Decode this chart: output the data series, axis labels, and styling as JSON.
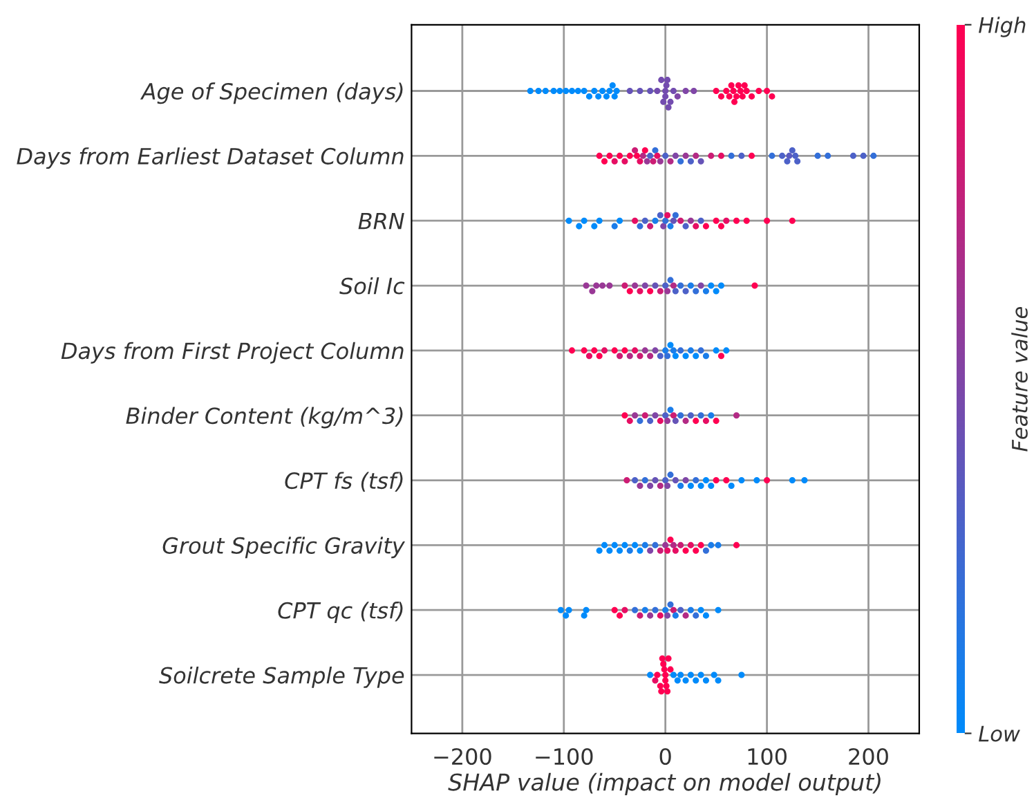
{
  "chart_data": {
    "type": "scatter",
    "orientation": "horizontal",
    "xlabel": "SHAP value (impact on model output)",
    "clabel": "Feature value",
    "categories": [
      "Age of Specimen (days)",
      "Days from Earliest Dataset Column",
      "BRN",
      "Soil Ic",
      "Days from First Project Column",
      "Binder Content (kg/m^3)",
      "CPT fs (tsf)",
      "Grout Specific Gravity",
      "CPT qc (tsf)",
      "Soilcrete Sample Type"
    ],
    "colors": [
      "#008bfb",
      "#ff0052"
    ],
    "clim": [
      0,
      1
    ],
    "cticks": [
      {
        "value": 0,
        "label": "Low"
      },
      {
        "value": 1,
        "label": "High"
      }
    ],
    "xlim": [
      -250,
      250
    ],
    "xticks": [
      -200,
      -100,
      0,
      100,
      200
    ],
    "grid": true,
    "legend": false,
    "series": [
      {
        "x": [
          "Age of Specimen (days)",
          "Age of Specimen (days)",
          "Age of Specimen (days)",
          "Age of Specimen (days)",
          "Age of Specimen (days)",
          "Age of Specimen (days)",
          "Age of Specimen (days)",
          "Age of Specimen (days)",
          "Age of Specimen (days)",
          "Age of Specimen (days)",
          "Age of Specimen (days)",
          "Age of Specimen (days)",
          "Age of Specimen (days)",
          "Age of Specimen (days)",
          "Age of Specimen (days)",
          "Age of Specimen (days)",
          "Age of Specimen (days)",
          "Age of Specimen (days)",
          "Age of Specimen (days)",
          "Age of Specimen (days)",
          "Age of Specimen (days)",
          "Age of Specimen (days)",
          "Age of Specimen (days)",
          "Age of Specimen (days)",
          "Age of Specimen (days)",
          "Age of Specimen (days)",
          "Age of Specimen (days)",
          "Age of Specimen (days)",
          "Age of Specimen (days)",
          "Age of Specimen (days)",
          "Age of Specimen (days)",
          "Age of Specimen (days)",
          "Age of Specimen (days)",
          "Age of Specimen (days)",
          "Age of Specimen (days)",
          "Age of Specimen (days)",
          "Age of Specimen (days)",
          "Age of Specimen (days)",
          "Age of Specimen (days)",
          "Age of Specimen (days)",
          "Age of Specimen (days)",
          "Age of Specimen (days)",
          "Age of Specimen (days)",
          "Age of Specimen (days)",
          "Age of Specimen (days)",
          "Age of Specimen (days)",
          "Age of Specimen (days)",
          "Age of Specimen (days)",
          "Age of Specimen (days)",
          "Age of Specimen (days)",
          "Age of Specimen (days)"
        ],
        "values": [
          -133,
          -125,
          -118,
          -110,
          -104,
          -98,
          -92,
          -86,
          -80,
          -75,
          -70,
          -66,
          -62,
          -58,
          -55,
          -52,
          -50,
          -48,
          -35,
          -25,
          -15,
          -8,
          -4,
          -2,
          0,
          0,
          1,
          2,
          3,
          5,
          8,
          12,
          20,
          28,
          50,
          55,
          60,
          63,
          65,
          67,
          68,
          70,
          72,
          74,
          76,
          78,
          80,
          85,
          92,
          100,
          105
        ],
        "colors": [
          "#008bfb",
          "#008bfb",
          "#008bfb",
          "#008bfb",
          "#008bfb",
          "#008bfb",
          "#008bfb",
          "#008bfb",
          "#008bfb",
          "#008bfb",
          "#008bfb",
          "#008bfb",
          "#008bfb",
          "#008bfb",
          "#008bfb",
          "#008bfb",
          "#008bfb",
          "#008bfb",
          "#6653b7",
          "#6653b7",
          "#6653b7",
          "#734caf",
          "#734caf",
          "#734caf",
          "#734caf",
          "#734caf",
          "#734caf",
          "#734caf",
          "#734caf",
          "#734caf",
          "#734caf",
          "#8046a7",
          "#8046a7",
          "#8046a7",
          "#ff0052",
          "#ff0052",
          "#ff0052",
          "#ff0052",
          "#ff0052",
          "#ff0052",
          "#ff0052",
          "#ff0052",
          "#ff0052",
          "#ff0052",
          "#ff0052",
          "#ff0052",
          "#ff0052",
          "#ff0052",
          "#ff0052",
          "#ff0052",
          "#ff0052"
        ]
      },
      {
        "x": [
          "Days from Earliest Dataset Column",
          "Days from Earliest Dataset Column",
          "Days from Earliest Dataset Column",
          "Days from Earliest Dataset Column",
          "Days from Earliest Dataset Column",
          "Days from Earliest Dataset Column",
          "Days from Earliest Dataset Column",
          "Days from Earliest Dataset Column",
          "Days from Earliest Dataset Column",
          "Days from Earliest Dataset Column",
          "Days from Earliest Dataset Column",
          "Days from Earliest Dataset Column",
          "Days from Earliest Dataset Column",
          "Days from Earliest Dataset Column",
          "Days from Earliest Dataset Column",
          "Days from Earliest Dataset Column",
          "Days from Earliest Dataset Column",
          "Days from Earliest Dataset Column",
          "Days from Earliest Dataset Column",
          "Days from Earliest Dataset Column",
          "Days from Earliest Dataset Column",
          "Days from Earliest Dataset Column",
          "Days from Earliest Dataset Column",
          "Days from Earliest Dataset Column",
          "Days from Earliest Dataset Column",
          "Days from Earliest Dataset Column",
          "Days from Earliest Dataset Column",
          "Days from Earliest Dataset Column",
          "Days from Earliest Dataset Column",
          "Days from Earliest Dataset Column",
          "Days from Earliest Dataset Column",
          "Days from Earliest Dataset Column",
          "Days from Earliest Dataset Column",
          "Days from Earliest Dataset Column",
          "Days from Earliest Dataset Column",
          "Days from Earliest Dataset Column",
          "Days from Earliest Dataset Column",
          "Days from Earliest Dataset Column",
          "Days from Earliest Dataset Column",
          "Days from Earliest Dataset Column",
          "Days from Earliest Dataset Column",
          "Days from Earliest Dataset Column",
          "Days from Earliest Dataset Column"
        ],
        "values": [
          -65,
          -60,
          -55,
          -50,
          -45,
          -40,
          -35,
          -30,
          -28,
          -25,
          -22,
          -20,
          -18,
          -15,
          -12,
          -10,
          -8,
          -5,
          0,
          5,
          10,
          15,
          20,
          25,
          30,
          35,
          45,
          55,
          65,
          75,
          85,
          105,
          115,
          120,
          122,
          125,
          128,
          130,
          150,
          160,
          185,
          195,
          205
        ],
        "colors": [
          "#ff0052",
          "#ff0052",
          "#ff0052",
          "#e60e63",
          "#ff0052",
          "#e60e63",
          "#ff0052",
          "#cc1c74",
          "#ff0052",
          "#e60e63",
          "#b32a85",
          "#ff0052",
          "#993896",
          "#4d61c8",
          "#cc1c74",
          "#336fd9",
          "#e60e63",
          "#993896",
          "#4d61c8",
          "#b32a85",
          "#8046a7",
          "#336fd9",
          "#993896",
          "#4d61c8",
          "#b32a85",
          "#6653b7",
          "#cc1c74",
          "#e60e63",
          "#336fd9",
          "#4d61c8",
          "#ff0052",
          "#336fd9",
          "#4d61c8",
          "#4d61c8",
          "#595ac0",
          "#4d61c8",
          "#4d61c8",
          "#4d61c8",
          "#336fd9",
          "#336fd9",
          "#4d61c8",
          "#4d61c8",
          "#336fd9"
        ]
      },
      {
        "x": [
          "BRN",
          "BRN",
          "BRN",
          "BRN",
          "BRN",
          "BRN",
          "BRN",
          "BRN",
          "BRN",
          "BRN",
          "BRN",
          "BRN",
          "BRN",
          "BRN",
          "BRN",
          "BRN",
          "BRN",
          "BRN",
          "BRN",
          "BRN",
          "BRN",
          "BRN",
          "BRN",
          "BRN",
          "BRN",
          "BRN",
          "BRN",
          "BRN",
          "BRN",
          "BRN",
          "BRN",
          "BRN"
        ],
        "values": [
          -95,
          -85,
          -80,
          -70,
          -65,
          -50,
          -45,
          -30,
          -25,
          -20,
          -15,
          -10,
          -5,
          -2,
          0,
          2,
          5,
          8,
          10,
          15,
          20,
          25,
          30,
          35,
          40,
          50,
          55,
          60,
          70,
          80,
          100,
          125
        ],
        "colors": [
          "#008bfb",
          "#008bfb",
          "#008bfb",
          "#008bfb",
          "#008bfb",
          "#1a7dea",
          "#008bfb",
          "#e60e63",
          "#336fd9",
          "#4d61c8",
          "#cc1c74",
          "#1a7dea",
          "#4d61c8",
          "#8046a7",
          "#336fd9",
          "#e60e63",
          "#1a7dea",
          "#6653b7",
          "#336fd9",
          "#cc1c74",
          "#4d61c8",
          "#993896",
          "#e60e63",
          "#4d61c8",
          "#ff0052",
          "#ff0052",
          "#ff0052",
          "#e60e63",
          "#ff0052",
          "#ff0052",
          "#ff0052",
          "#ff0052"
        ]
      },
      {
        "x": [
          "Soil Ic",
          "Soil Ic",
          "Soil Ic",
          "Soil Ic",
          "Soil Ic",
          "Soil Ic",
          "Soil Ic",
          "Soil Ic",
          "Soil Ic",
          "Soil Ic",
          "Soil Ic",
          "Soil Ic",
          "Soil Ic",
          "Soil Ic",
          "Soil Ic",
          "Soil Ic",
          "Soil Ic",
          "Soil Ic",
          "Soil Ic",
          "Soil Ic",
          "Soil Ic",
          "Soil Ic",
          "Soil Ic",
          "Soil Ic",
          "Soil Ic",
          "Soil Ic",
          "Soil Ic",
          "Soil Ic"
        ],
        "values": [
          -78,
          -72,
          -68,
          -62,
          -55,
          -40,
          -35,
          -30,
          -25,
          -20,
          -15,
          -10,
          -5,
          0,
          2,
          5,
          8,
          10,
          15,
          20,
          25,
          30,
          35,
          40,
          45,
          50,
          55,
          88
        ],
        "colors": [
          "#993896",
          "#993896",
          "#993896",
          "#993896",
          "#993896",
          "#cc1c74",
          "#ff0052",
          "#993896",
          "#e60e63",
          "#8046a7",
          "#ff0052",
          "#6653b7",
          "#cc1c74",
          "#4d61c8",
          "#993896",
          "#336fd9",
          "#b32a85",
          "#4d61c8",
          "#336fd9",
          "#4d61c8",
          "#1a7dea",
          "#336fd9",
          "#8046a7",
          "#1a7dea",
          "#008bfb",
          "#008bfb",
          "#008bfb",
          "#ff0052"
        ]
      },
      {
        "x": [
          "Days from First Project Column",
          "Days from First Project Column",
          "Days from First Project Column",
          "Days from First Project Column",
          "Days from First Project Column",
          "Days from First Project Column",
          "Days from First Project Column",
          "Days from First Project Column",
          "Days from First Project Column",
          "Days from First Project Column",
          "Days from First Project Column",
          "Days from First Project Column",
          "Days from First Project Column",
          "Days from First Project Column",
          "Days from First Project Column",
          "Days from First Project Column",
          "Days from First Project Column",
          "Days from First Project Column",
          "Days from First Project Column",
          "Days from First Project Column",
          "Days from First Project Column",
          "Days from First Project Column",
          "Days from First Project Column",
          "Days from First Project Column",
          "Days from First Project Column",
          "Days from First Project Column",
          "Days from First Project Column",
          "Days from First Project Column",
          "Days from First Project Column",
          "Days from First Project Column"
        ],
        "values": [
          -92,
          -80,
          -75,
          -70,
          -65,
          -60,
          -50,
          -45,
          -40,
          -35,
          -30,
          -25,
          -20,
          -15,
          -10,
          -5,
          0,
          2,
          5,
          8,
          10,
          15,
          20,
          25,
          30,
          35,
          40,
          50,
          55,
          60
        ],
        "colors": [
          "#ff0052",
          "#ff0052",
          "#e60e63",
          "#ff0052",
          "#ff0052",
          "#e60e63",
          "#ff0052",
          "#cc1c74",
          "#ff0052",
          "#b32a85",
          "#e60e63",
          "#cc1c74",
          "#993896",
          "#b32a85",
          "#8046a7",
          "#4d61c8",
          "#1a7dea",
          "#336fd9",
          "#008bfb",
          "#1a7dea",
          "#008bfb",
          "#336fd9",
          "#008bfb",
          "#1a7dea",
          "#008bfb",
          "#336fd9",
          "#1a7dea",
          "#008bfb",
          "#ff0052",
          "#008bfb"
        ]
      },
      {
        "x": [
          "Binder Content (kg/m^3)",
          "Binder Content (kg/m^3)",
          "Binder Content (kg/m^3)",
          "Binder Content (kg/m^3)",
          "Binder Content (kg/m^3)",
          "Binder Content (kg/m^3)",
          "Binder Content (kg/m^3)",
          "Binder Content (kg/m^3)",
          "Binder Content (kg/m^3)",
          "Binder Content (kg/m^3)",
          "Binder Content (kg/m^3)",
          "Binder Content (kg/m^3)",
          "Binder Content (kg/m^3)",
          "Binder Content (kg/m^3)",
          "Binder Content (kg/m^3)",
          "Binder Content (kg/m^3)",
          "Binder Content (kg/m^3)",
          "Binder Content (kg/m^3)",
          "Binder Content (kg/m^3)",
          "Binder Content (kg/m^3)",
          "Binder Content (kg/m^3)",
          "Binder Content (kg/m^3)"
        ],
        "values": [
          -40,
          -35,
          -30,
          -25,
          -20,
          -15,
          -10,
          -5,
          0,
          2,
          5,
          8,
          10,
          15,
          20,
          25,
          30,
          35,
          40,
          45,
          50,
          70
        ],
        "colors": [
          "#ff0052",
          "#e60e63",
          "#993896",
          "#336fd9",
          "#cc1c74",
          "#4d61c8",
          "#8046a7",
          "#e60e63",
          "#4d61c8",
          "#993896",
          "#1a7dea",
          "#cc1c74",
          "#6653b7",
          "#336fd9",
          "#b32a85",
          "#4d61c8",
          "#ff0052",
          "#336fd9",
          "#e60e63",
          "#1a7dea",
          "#ff0052",
          "#b32a85"
        ]
      },
      {
        "x": [
          "CPT fs (tsf)",
          "CPT fs (tsf)",
          "CPT fs (tsf)",
          "CPT fs (tsf)",
          "CPT fs (tsf)",
          "CPT fs (tsf)",
          "CPT fs (tsf)",
          "CPT fs (tsf)",
          "CPT fs (tsf)",
          "CPT fs (tsf)",
          "CPT fs (tsf)",
          "CPT fs (tsf)",
          "CPT fs (tsf)",
          "CPT fs (tsf)",
          "CPT fs (tsf)",
          "CPT fs (tsf)",
          "CPT fs (tsf)",
          "CPT fs (tsf)",
          "CPT fs (tsf)",
          "CPT fs (tsf)",
          "CPT fs (tsf)",
          "CPT fs (tsf)",
          "CPT fs (tsf)",
          "CPT fs (tsf)",
          "CPT fs (tsf)",
          "CPT fs (tsf)"
        ],
        "values": [
          -38,
          -30,
          -25,
          -20,
          -15,
          -10,
          -5,
          0,
          2,
          5,
          10,
          15,
          20,
          25,
          30,
          35,
          40,
          45,
          50,
          60,
          65,
          75,
          90,
          100,
          125,
          137
        ],
        "colors": [
          "#cc1c74",
          "#4d61c8",
          "#993896",
          "#336fd9",
          "#8046a7",
          "#6653b7",
          "#b32a85",
          "#4d61c8",
          "#8046a7",
          "#336fd9",
          "#6653b7",
          "#1a7dea",
          "#8046a7",
          "#008bfb",
          "#336fd9",
          "#008bfb",
          "#008bfb",
          "#008bfb",
          "#ff0052",
          "#ff0052",
          "#008bfb",
          "#008bfb",
          "#008bfb",
          "#ff0052",
          "#008bfb",
          "#008bfb"
        ]
      },
      {
        "x": [
          "Grout Specific Gravity",
          "Grout Specific Gravity",
          "Grout Specific Gravity",
          "Grout Specific Gravity",
          "Grout Specific Gravity",
          "Grout Specific Gravity",
          "Grout Specific Gravity",
          "Grout Specific Gravity",
          "Grout Specific Gravity",
          "Grout Specific Gravity",
          "Grout Specific Gravity",
          "Grout Specific Gravity",
          "Grout Specific Gravity",
          "Grout Specific Gravity",
          "Grout Specific Gravity",
          "Grout Specific Gravity",
          "Grout Specific Gravity",
          "Grout Specific Gravity",
          "Grout Specific Gravity",
          "Grout Specific Gravity",
          "Grout Specific Gravity",
          "Grout Specific Gravity",
          "Grout Specific Gravity",
          "Grout Specific Gravity",
          "Grout Specific Gravity",
          "Grout Specific Gravity",
          "Grout Specific Gravity"
        ],
        "values": [
          -65,
          -60,
          -55,
          -50,
          -45,
          -40,
          -35,
          -30,
          -25,
          -20,
          -15,
          -10,
          -5,
          0,
          2,
          5,
          8,
          10,
          15,
          20,
          25,
          30,
          35,
          40,
          45,
          52,
          70
        ],
        "colors": [
          "#008bfb",
          "#008bfb",
          "#008bfb",
          "#008bfb",
          "#008bfb",
          "#008bfb",
          "#1a7dea",
          "#008bfb",
          "#008bfb",
          "#1a7dea",
          "#8046a7",
          "#336fd9",
          "#cc1c74",
          "#993896",
          "#e60e63",
          "#ff0052",
          "#b32a85",
          "#e60e63",
          "#cc1c74",
          "#ff0052",
          "#e60e63",
          "#ff0052",
          "#ff0052",
          "#336fd9",
          "#1a7dea",
          "#1a7dea",
          "#ff0052"
        ]
      },
      {
        "x": [
          "CPT qc (tsf)",
          "CPT qc (tsf)",
          "CPT qc (tsf)",
          "CPT qc (tsf)",
          "CPT qc (tsf)",
          "CPT qc (tsf)",
          "CPT qc (tsf)",
          "CPT qc (tsf)",
          "CPT qc (tsf)",
          "CPT qc (tsf)",
          "CPT qc (tsf)",
          "CPT qc (tsf)",
          "CPT qc (tsf)",
          "CPT qc (tsf)",
          "CPT qc (tsf)",
          "CPT qc (tsf)",
          "CPT qc (tsf)",
          "CPT qc (tsf)",
          "CPT qc (tsf)",
          "CPT qc (tsf)",
          "CPT qc (tsf)",
          "CPT qc (tsf)",
          "CPT qc (tsf)",
          "CPT qc (tsf)",
          "CPT qc (tsf)",
          "CPT qc (tsf)"
        ],
        "values": [
          -103,
          -98,
          -95,
          -80,
          -78,
          -50,
          -45,
          -40,
          -30,
          -25,
          -20,
          -15,
          -10,
          -5,
          0,
          2,
          5,
          8,
          10,
          15,
          20,
          25,
          30,
          35,
          40,
          52
        ],
        "colors": [
          "#008bfb",
          "#008bfb",
          "#008bfb",
          "#008bfb",
          "#008bfb",
          "#ff0052",
          "#ff0052",
          "#e60e63",
          "#336fd9",
          "#cc1c74",
          "#1a7dea",
          "#993896",
          "#336fd9",
          "#e60e63",
          "#1a7dea",
          "#8046a7",
          "#336fd9",
          "#cc1c74",
          "#1a7dea",
          "#4d61c8",
          "#b32a85",
          "#1a7dea",
          "#336fd9",
          "#008bfb",
          "#008bfb",
          "#008bfb"
        ]
      },
      {
        "x": [
          "Soilcrete Sample Type",
          "Soilcrete Sample Type",
          "Soilcrete Sample Type",
          "Soilcrete Sample Type",
          "Soilcrete Sample Type",
          "Soilcrete Sample Type",
          "Soilcrete Sample Type",
          "Soilcrete Sample Type",
          "Soilcrete Sample Type",
          "Soilcrete Sample Type",
          "Soilcrete Sample Type",
          "Soilcrete Sample Type",
          "Soilcrete Sample Type",
          "Soilcrete Sample Type",
          "Soilcrete Sample Type",
          "Soilcrete Sample Type",
          "Soilcrete Sample Type",
          "Soilcrete Sample Type",
          "Soilcrete Sample Type",
          "Soilcrete Sample Type",
          "Soilcrete Sample Type",
          "Soilcrete Sample Type",
          "Soilcrete Sample Type",
          "Soilcrete Sample Type",
          "Soilcrete Sample Type"
        ],
        "values": [
          -15,
          -10,
          -8,
          -5,
          -4,
          -3,
          -2,
          -1,
          0,
          0,
          1,
          2,
          3,
          5,
          8,
          12,
          15,
          20,
          25,
          30,
          35,
          40,
          48,
          52,
          75
        ],
        "colors": [
          "#008bfb",
          "#e60e63",
          "#ff0052",
          "#ff0052",
          "#ff0052",
          "#ff0052",
          "#ff0052",
          "#ff0052",
          "#ff0052",
          "#ff0052",
          "#ff0052",
          "#ff0052",
          "#ff0052",
          "#ff0052",
          "#008bfb",
          "#008bfb",
          "#008bfb",
          "#008bfb",
          "#008bfb",
          "#008bfb",
          "#008bfb",
          "#008bfb",
          "#008bfb",
          "#008bfb",
          "#008bfb"
        ]
      }
    ]
  }
}
